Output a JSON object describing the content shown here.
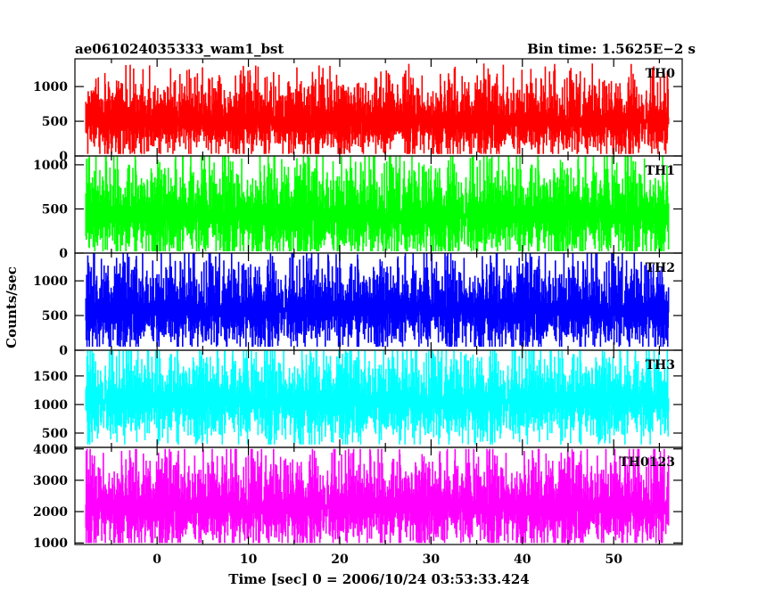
{
  "header": {
    "title": "ae061024035333_wam1_bst",
    "bin_time": "Bin time: 1.5625E−2 s"
  },
  "axes": {
    "ylabel": "Counts/sec",
    "xlabel": "Time [sec] 0 = 2006/10/24 03:53:33.424"
  },
  "chart_data": {
    "type": "line",
    "title": "ae061024035333_wam1_bst",
    "subtitle": "Bin time: 1.5625E−2 s",
    "xlabel": "Time [sec] 0 = 2006/10/24 03:53:33.424",
    "ylabel": "Counts/sec",
    "xlim": [
      -9.0,
      57.5
    ],
    "x_ticks": [
      0,
      10,
      20,
      30,
      40,
      50
    ],
    "x_tick_labels": [
      "0",
      "10",
      "20",
      "30",
      "40",
      "50"
    ],
    "data_x_range": [
      -7.8,
      56.0
    ],
    "grid": false,
    "panels": [
      {
        "name": "TH0",
        "color": "#ff0000",
        "ylim": [
          0,
          1400
        ],
        "yticks": [
          0,
          500,
          1000
        ],
        "ytick_labels": [
          "0",
          "500",
          "1000"
        ],
        "typical_range": [
          120,
          1000
        ],
        "mean": 500,
        "min": 30,
        "max": 1400
      },
      {
        "name": "TH1",
        "color": "#00ff00",
        "ylim": [
          0,
          1100
        ],
        "yticks": [
          0,
          500,
          1000
        ],
        "ytick_labels": [
          "0",
          "500",
          "1000"
        ],
        "typical_range": [
          80,
          950
        ],
        "mean": 420,
        "min": 20,
        "max": 1100
      },
      {
        "name": "TH2",
        "color": "#0000ff",
        "ylim": [
          0,
          1400
        ],
        "yticks": [
          0,
          500,
          1000
        ],
        "ytick_labels": [
          "0",
          "500",
          "1000"
        ],
        "typical_range": [
          150,
          1150
        ],
        "mean": 580,
        "min": 50,
        "max": 1400
      },
      {
        "name": "TH3",
        "color": "#00ffff",
        "ylim": [
          250,
          1950
        ],
        "yticks": [
          500,
          1000,
          1500
        ],
        "ytick_labels": [
          "500",
          "1000",
          "1500"
        ],
        "typical_range": [
          500,
          1750
        ],
        "mean": 1050,
        "min": 300,
        "max": 1950
      },
      {
        "name": "TH0123",
        "color": "#ff00ff",
        "ylim": [
          950,
          4050
        ],
        "yticks": [
          1000,
          2000,
          3000,
          4000
        ],
        "ytick_labels": [
          "1000",
          "2000",
          "3000",
          "4000"
        ],
        "typical_range": [
          1200,
          3500
        ],
        "mean": 2150,
        "min": 1000,
        "max": 4000
      }
    ]
  }
}
